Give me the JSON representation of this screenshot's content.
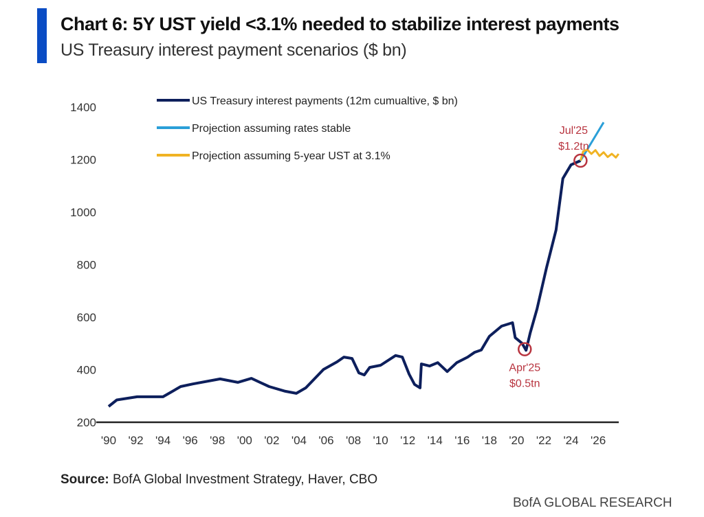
{
  "chart_data": {
    "type": "line",
    "title": "Chart 6: 5Y UST yield <3.1% needed to stabilize interest payments",
    "subtitle": "US Treasury interest payment scenarios ($ bn)",
    "xlabel": "",
    "ylabel": "",
    "xlim": [
      1989.3,
      2027.6
    ],
    "ylim": [
      200,
      1400
    ],
    "yticks": [
      200,
      400,
      600,
      800,
      1000,
      1200,
      1400
    ],
    "xticks": [
      {
        "year": 1990,
        "label": "'90"
      },
      {
        "year": 1992,
        "label": "'92"
      },
      {
        "year": 1994,
        "label": "'94"
      },
      {
        "year": 1996,
        "label": "'96"
      },
      {
        "year": 1998,
        "label": "'98"
      },
      {
        "year": 2000,
        "label": "'00"
      },
      {
        "year": 2002,
        "label": "'02"
      },
      {
        "year": 2004,
        "label": "'04"
      },
      {
        "year": 2006,
        "label": "'06"
      },
      {
        "year": 2008,
        "label": "'08"
      },
      {
        "year": 2010,
        "label": "'10"
      },
      {
        "year": 2012,
        "label": "'12"
      },
      {
        "year": 2014,
        "label": "'14"
      },
      {
        "year": 2016,
        "label": "'16"
      },
      {
        "year": 2018,
        "label": "'18"
      },
      {
        "year": 2020,
        "label": "'20"
      },
      {
        "year": 2022,
        "label": "'22"
      },
      {
        "year": 2024,
        "label": "'24"
      },
      {
        "year": 2026,
        "label": "'26"
      }
    ],
    "grid": false,
    "legend_position": "top-left",
    "series": [
      {
        "name": "US Treasury interest payments (12m cumualtive, $ bn)",
        "color": "#0d1f5c",
        "x": [
          1990,
          1990.6,
          1992.1,
          1994,
          1995.3,
          1996.2,
          1998.2,
          1999.5,
          2000.5,
          2001.8,
          2003,
          2003.8,
          2004.5,
          2005.8,
          2006.8,
          2007.3,
          2007.9,
          2008.4,
          2008.8,
          2009.2,
          2010,
          2011.1,
          2011.6,
          2012.1,
          2012.5,
          2012.9,
          2013,
          2013.6,
          2014.2,
          2014.9,
          2015.6,
          2016.4,
          2016.9,
          2017.4,
          2018,
          2018.9,
          2019.7,
          2019.9,
          2020.4,
          2020.7,
          2021,
          2021.5,
          2022.2,
          2022.9,
          2023.4,
          2024,
          2024.7
        ],
        "y": [
          260,
          285,
          297,
          297,
          336,
          346,
          365,
          352,
          367,
          336,
          318,
          310,
          331,
          401,
          430,
          448,
          443,
          388,
          380,
          409,
          417,
          454,
          448,
          383,
          344,
          331,
          422,
          414,
          427,
          393,
          427,
          448,
          466,
          475,
          527,
          566,
          579,
          522,
          501,
          474,
          540,
          631,
          788,
          932,
          1128,
          1180,
          1196
        ]
      },
      {
        "name": "Projection assuming rates stable",
        "color": "#2a9fd8",
        "x": [
          2024.7,
          2026.4
        ],
        "y": [
          1196,
          1342
        ]
      },
      {
        "name": "Projection assuming 5-year UST at 3.1%",
        "color": "#f0b323",
        "x": [
          2024.7,
          2024.9,
          2025.2,
          2025.5,
          2025.8,
          2026.1,
          2026.4,
          2026.7,
          2027,
          2027.3,
          2027.5
        ],
        "y": [
          1196,
          1232,
          1238,
          1222,
          1236,
          1214,
          1228,
          1210,
          1222,
          1208,
          1222
        ]
      }
    ],
    "annotations": [
      {
        "label": "Apr'25",
        "value_label": "$0.5tn",
        "x": 2020.6,
        "y": 478,
        "color": "#b8343f"
      },
      {
        "label": "Jul'25",
        "value_label": "$1.2tn",
        "x": 2024.7,
        "y": 1196,
        "color": "#b8343f"
      }
    ]
  },
  "source_label": "Source:",
  "source_text": " BofA Global Investment Strategy, Haver, CBO",
  "brand": "BofA GLOBAL RESEARCH"
}
